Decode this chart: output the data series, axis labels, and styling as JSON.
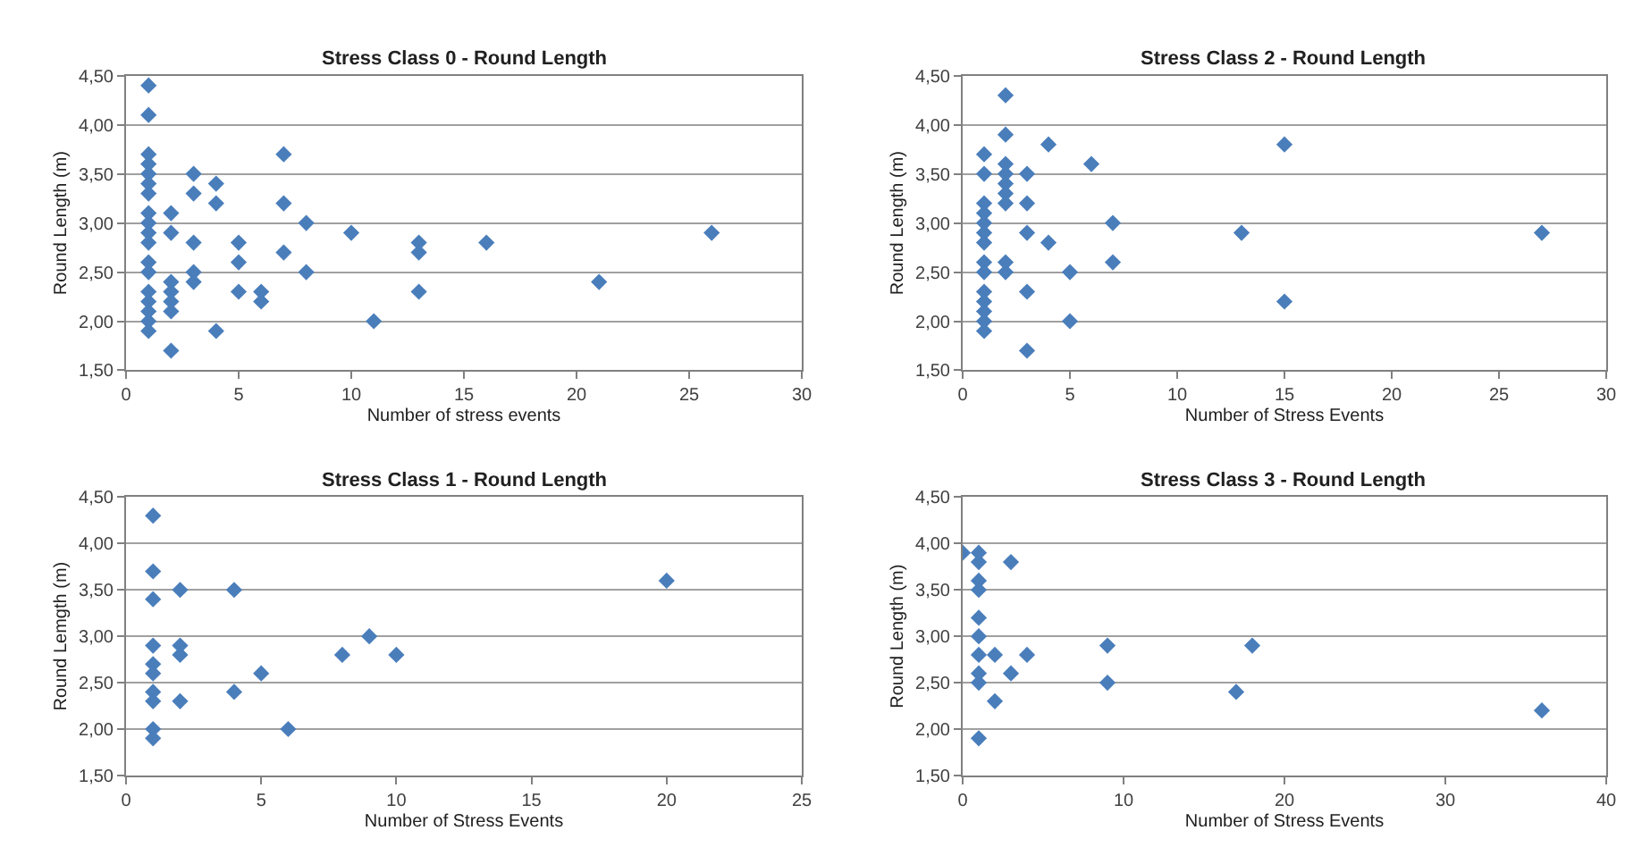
{
  "chart_data": [
    {
      "type": "scatter",
      "title": "Stress Class 0 - Round Length",
      "xlabel": "Number of stress events",
      "ylabel": "Round Length (m)",
      "color": "#4a7ebb",
      "marker": "diamond",
      "grid": "y",
      "x": [
        1,
        1,
        1,
        1,
        1,
        1,
        1,
        1,
        1,
        1,
        1,
        1,
        1,
        1,
        1,
        1,
        1,
        1,
        2,
        2,
        2,
        2,
        2,
        2,
        2,
        3,
        3,
        3,
        3,
        3,
        4,
        4,
        4,
        5,
        5,
        5,
        6,
        6,
        7,
        7,
        7,
        8,
        8,
        10,
        11,
        13,
        13,
        13,
        16,
        21,
        26
      ],
      "values": [
        4.4,
        4.1,
        3.7,
        3.6,
        3.5,
        3.4,
        3.3,
        3.1,
        3.0,
        2.9,
        2.8,
        2.6,
        2.5,
        2.3,
        2.2,
        2.1,
        2.0,
        1.9,
        3.1,
        2.9,
        2.4,
        2.3,
        2.2,
        2.1,
        1.7,
        3.5,
        3.3,
        2.8,
        2.5,
        2.4,
        3.4,
        3.2,
        1.9,
        2.8,
        2.6,
        2.3,
        2.3,
        2.2,
        3.7,
        3.2,
        2.7,
        3.0,
        2.5,
        2.9,
        2.0,
        2.8,
        2.7,
        2.3,
        2.8,
        2.4,
        2.9
      ],
      "xlim": [
        0,
        30
      ],
      "xticks": [
        0,
        5,
        10,
        15,
        20,
        25,
        30
      ],
      "ylim": [
        1.5,
        4.5
      ],
      "yticks": [
        {
          "value": 1.5,
          "label": "1,50"
        },
        {
          "value": 2.0,
          "label": "2,00"
        },
        {
          "value": 2.5,
          "label": "2,50"
        },
        {
          "value": 3.0,
          "label": "3,00"
        },
        {
          "value": 3.5,
          "label": "3,50"
        },
        {
          "value": 4.0,
          "label": "4,00"
        },
        {
          "value": 4.5,
          "label": "4,50"
        }
      ]
    },
    {
      "type": "scatter",
      "title": "Stress Class 2 - Round Length",
      "xlabel": "Number of Stress Events",
      "ylabel": "Round Length (m)",
      "color": "#4a7ebb",
      "marker": "diamond",
      "grid": "y",
      "x": [
        1,
        1,
        1,
        1,
        1,
        1,
        1,
        1,
        1,
        1,
        1,
        1,
        1,
        1,
        2,
        2,
        2,
        2,
        2,
        2,
        2,
        2,
        2,
        3,
        3,
        3,
        3,
        3,
        4,
        4,
        5,
        5,
        6,
        7,
        7,
        13,
        15,
        15,
        27
      ],
      "values": [
        3.7,
        3.5,
        3.2,
        3.1,
        3.0,
        2.9,
        2.8,
        2.6,
        2.5,
        2.3,
        2.2,
        2.1,
        2.0,
        1.9,
        4.3,
        3.9,
        3.6,
        3.5,
        3.4,
        3.3,
        3.2,
        2.6,
        2.5,
        3.5,
        3.2,
        2.9,
        2.3,
        1.7,
        3.8,
        2.8,
        2.5,
        2.0,
        3.6,
        3.0,
        2.6,
        2.9,
        3.8,
        2.2,
        2.9
      ],
      "xlim": [
        0,
        30
      ],
      "xticks": [
        0,
        5,
        10,
        15,
        20,
        25,
        30
      ],
      "ylim": [
        1.5,
        4.5
      ],
      "yticks": [
        {
          "value": 1.5,
          "label": "1,50"
        },
        {
          "value": 2.0,
          "label": "2,00"
        },
        {
          "value": 2.5,
          "label": "2,50"
        },
        {
          "value": 3.0,
          "label": "3,00"
        },
        {
          "value": 3.5,
          "label": "3,50"
        },
        {
          "value": 4.0,
          "label": "4,00"
        },
        {
          "value": 4.5,
          "label": "4,50"
        }
      ]
    },
    {
      "type": "scatter",
      "title": "Stress Class 1 - Round Length",
      "xlabel": "Number of Stress Events",
      "ylabel": "Round Lemgth (m)",
      "color": "#4a7ebb",
      "marker": "diamond",
      "grid": "y",
      "x": [
        1,
        1,
        1,
        1,
        1,
        1,
        1,
        1,
        1,
        1,
        2,
        2,
        2,
        2,
        4,
        4,
        5,
        6,
        8,
        9,
        10,
        20
      ],
      "values": [
        4.3,
        3.7,
        3.4,
        2.9,
        2.7,
        2.6,
        2.4,
        2.3,
        2.0,
        1.9,
        3.5,
        2.9,
        2.8,
        2.3,
        3.5,
        2.4,
        2.6,
        2.0,
        2.8,
        3.0,
        2.8,
        3.6
      ],
      "xlim": [
        0,
        25
      ],
      "xticks": [
        0,
        5,
        10,
        15,
        20,
        25
      ],
      "ylim": [
        1.5,
        4.5
      ],
      "yticks": [
        {
          "value": 1.5,
          "label": "1,50"
        },
        {
          "value": 2.0,
          "label": "2,00"
        },
        {
          "value": 2.5,
          "label": "2,50"
        },
        {
          "value": 3.0,
          "label": "3,00"
        },
        {
          "value": 3.5,
          "label": "3,50"
        },
        {
          "value": 4.0,
          "label": "4,00"
        },
        {
          "value": 4.5,
          "label": "4,50"
        }
      ]
    },
    {
      "type": "scatter",
      "title": "Stress Class 3 - Round Length",
      "xlabel": "Number of Stress Events",
      "ylabel": "Round Length (m)",
      "color": "#4a7ebb",
      "marker": "diamond",
      "grid": "y",
      "x": [
        0,
        1,
        1,
        1,
        1,
        1,
        1,
        1,
        1,
        1,
        1,
        2,
        2,
        3,
        3,
        4,
        9,
        9,
        17,
        18,
        36
      ],
      "values": [
        3.9,
        3.9,
        3.8,
        3.6,
        3.5,
        3.2,
        3.0,
        2.8,
        2.6,
        2.5,
        1.9,
        2.8,
        2.3,
        3.8,
        2.6,
        2.8,
        2.9,
        2.5,
        2.4,
        2.9,
        2.2
      ],
      "xlim": [
        0,
        40
      ],
      "xticks": [
        0,
        10,
        20,
        30,
        40
      ],
      "ylim": [
        1.5,
        4.5
      ],
      "yticks": [
        {
          "value": 1.5,
          "label": "1,50"
        },
        {
          "value": 2.0,
          "label": "2,00"
        },
        {
          "value": 2.5,
          "label": "2,50"
        },
        {
          "value": 3.0,
          "label": "3,00"
        },
        {
          "value": 3.5,
          "label": "3,50"
        },
        {
          "value": 4.0,
          "label": "4,00"
        },
        {
          "value": 4.5,
          "label": "4,50"
        }
      ]
    }
  ]
}
